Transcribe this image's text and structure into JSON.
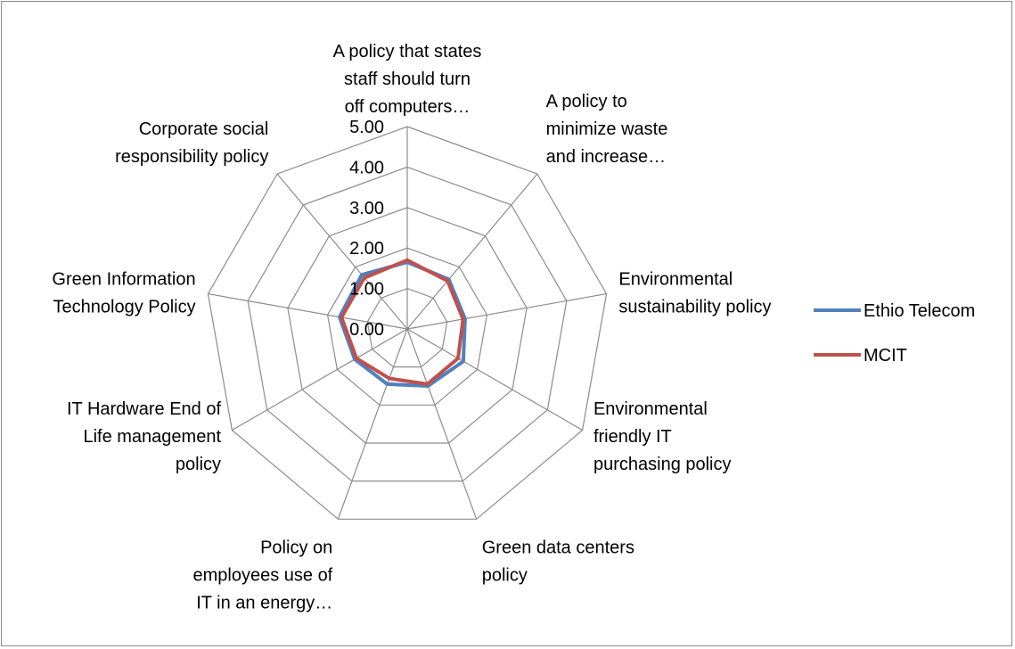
{
  "chart_data": {
    "type": "radar",
    "categories": [
      "A policy that states staff should turn off computers…",
      "A policy to minimize waste and increase…",
      "Environmental sustainability policy",
      "Environmental friendly IT purchasing policy",
      "Green data centers policy",
      "Policy on employees use of IT in an energy…",
      "IT Hardware End of Life management policy",
      "Green Information Technology Policy",
      "Corporate social responsibility policy"
    ],
    "category_label_lines": [
      [
        "A policy that states",
        "staff should turn",
        "off computers…"
      ],
      [
        "A policy to",
        "minimize waste",
        "and increase…"
      ],
      [
        "Environmental",
        "sustainability policy"
      ],
      [
        "Environmental",
        "friendly IT",
        "purchasing policy"
      ],
      [
        "Green data centers",
        "policy"
      ],
      [
        "Policy on",
        "employees use of",
        "IT in an energy…"
      ],
      [
        "IT Hardware End of",
        "Life management",
        "policy"
      ],
      [
        "Green Information",
        "Technology Policy"
      ],
      [
        "Corporate social",
        "responsibility policy"
      ]
    ],
    "rlim": [
      0,
      5
    ],
    "ticks": [
      "0.00",
      "1.00",
      "2.00",
      "3.00",
      "4.00",
      "5.00"
    ],
    "legend_position": "right",
    "series": [
      {
        "name": "Ethio Telecom",
        "color": "#4f81bd",
        "values": [
          1.65,
          1.6,
          1.45,
          1.6,
          1.5,
          1.45,
          1.5,
          1.7,
          1.75
        ]
      },
      {
        "name": "MCIT",
        "color": "#c0504d",
        "values": [
          1.7,
          1.55,
          1.4,
          1.45,
          1.45,
          1.3,
          1.45,
          1.65,
          1.65
        ]
      }
    ]
  }
}
